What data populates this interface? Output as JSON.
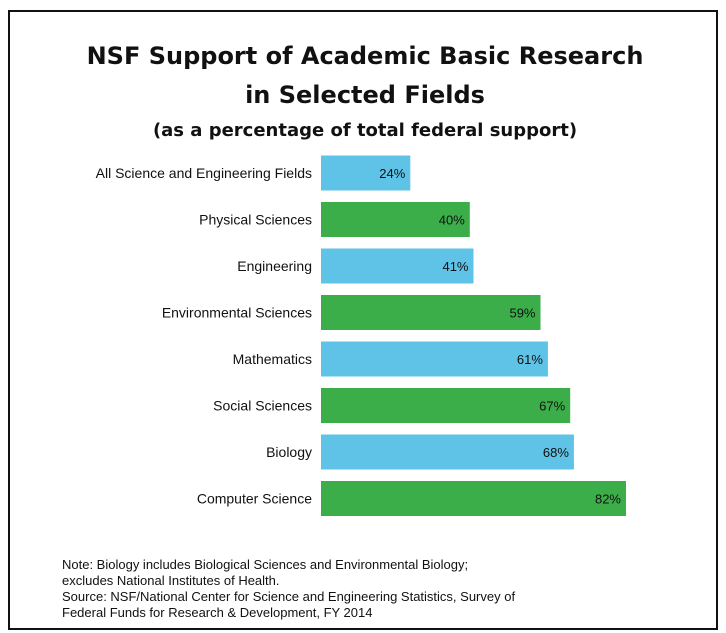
{
  "title_line1": "NSF Support of Academic Basic Research",
  "title_line2": "in Selected Fields",
  "subtitle": "(as a percentage of total federal support)",
  "colors": {
    "blue": "#5ec3e6",
    "green": "#3cae49",
    "text": "#111111"
  },
  "chart_data": {
    "type": "bar",
    "orientation": "horizontal",
    "categories": [
      "All Science and Engineering Fields",
      "Physical Sciences",
      "Engineering",
      "Environmental Sciences",
      "Mathematics",
      "Social Sciences",
      "Biology",
      "Computer Science"
    ],
    "values": [
      24,
      40,
      41,
      59,
      61,
      67,
      68,
      82
    ],
    "value_labels": [
      "24%",
      "40%",
      "41%",
      "59%",
      "61%",
      "67%",
      "68%",
      "82%"
    ],
    "bar_colors": [
      "blue",
      "green",
      "blue",
      "green",
      "blue",
      "green",
      "blue",
      "green"
    ],
    "unit": "%",
    "xlim": [
      0,
      82
    ],
    "grid": false,
    "legend": "none"
  },
  "notes": {
    "line1": "Note: Biology includes Biological Sciences and Environmental Biology;",
    "line2": "excludes National Institutes of Health.",
    "line3": "Source: NSF/National Center for Science and Engineering Statistics, Survey of",
    "line4": "Federal Funds for Research & Development, FY 2014"
  }
}
